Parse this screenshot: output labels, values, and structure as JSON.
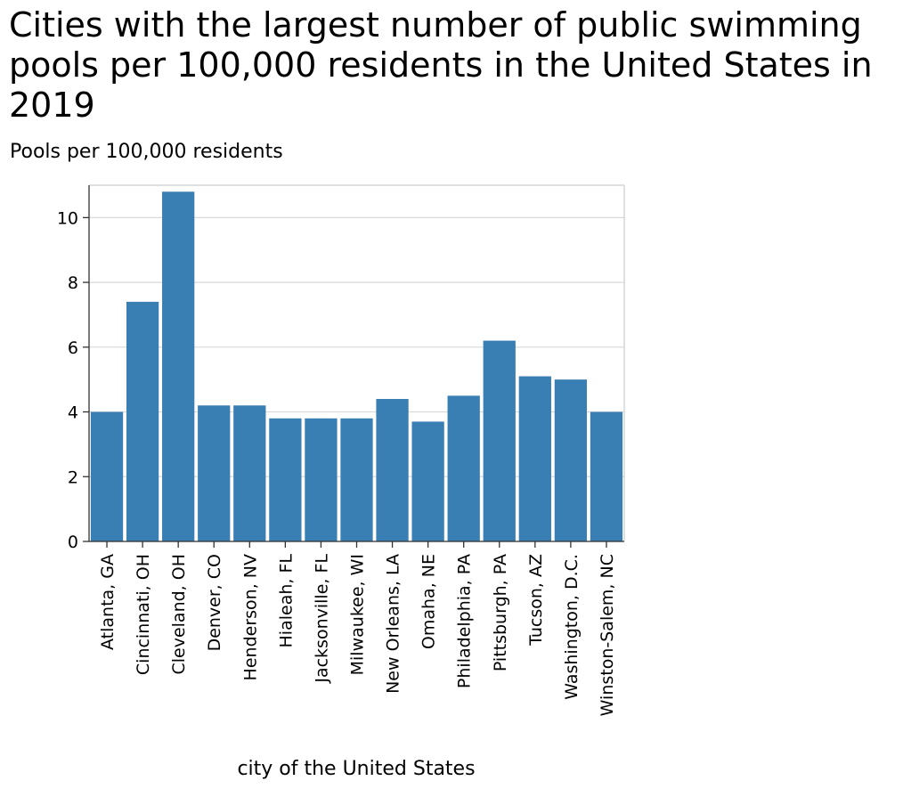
{
  "chart_data": {
    "type": "bar",
    "title": "Cities with the largest number of public swimming pools per 100,000 residents in the United States in 2019",
    "ylabel": "Pools per 100,000 residents",
    "xlabel": "city of the United States",
    "categories": [
      "Atlanta, GA",
      "Cincinnati, OH",
      "Cleveland, OH",
      "Denver, CO",
      "Henderson, NV",
      "Hialeah, FL",
      "Jacksonville, FL",
      "Milwaukee, WI",
      "New Orleans, LA",
      "Omaha, NE",
      "Philadelphia, PA",
      "Pittsburgh, PA",
      "Tucson, AZ",
      "Washington, D.C.",
      "Winston-Salem, NC"
    ],
    "values": [
      4.0,
      7.4,
      10.8,
      4.2,
      4.2,
      3.8,
      3.8,
      3.8,
      4.4,
      3.7,
      4.5,
      6.2,
      5.1,
      5.0,
      4.0
    ],
    "ylim": [
      0,
      11
    ],
    "yticks": [
      0,
      2,
      4,
      6,
      8,
      10
    ],
    "grid": true,
    "legend": "none",
    "bar_color": "#3a7fb3"
  }
}
